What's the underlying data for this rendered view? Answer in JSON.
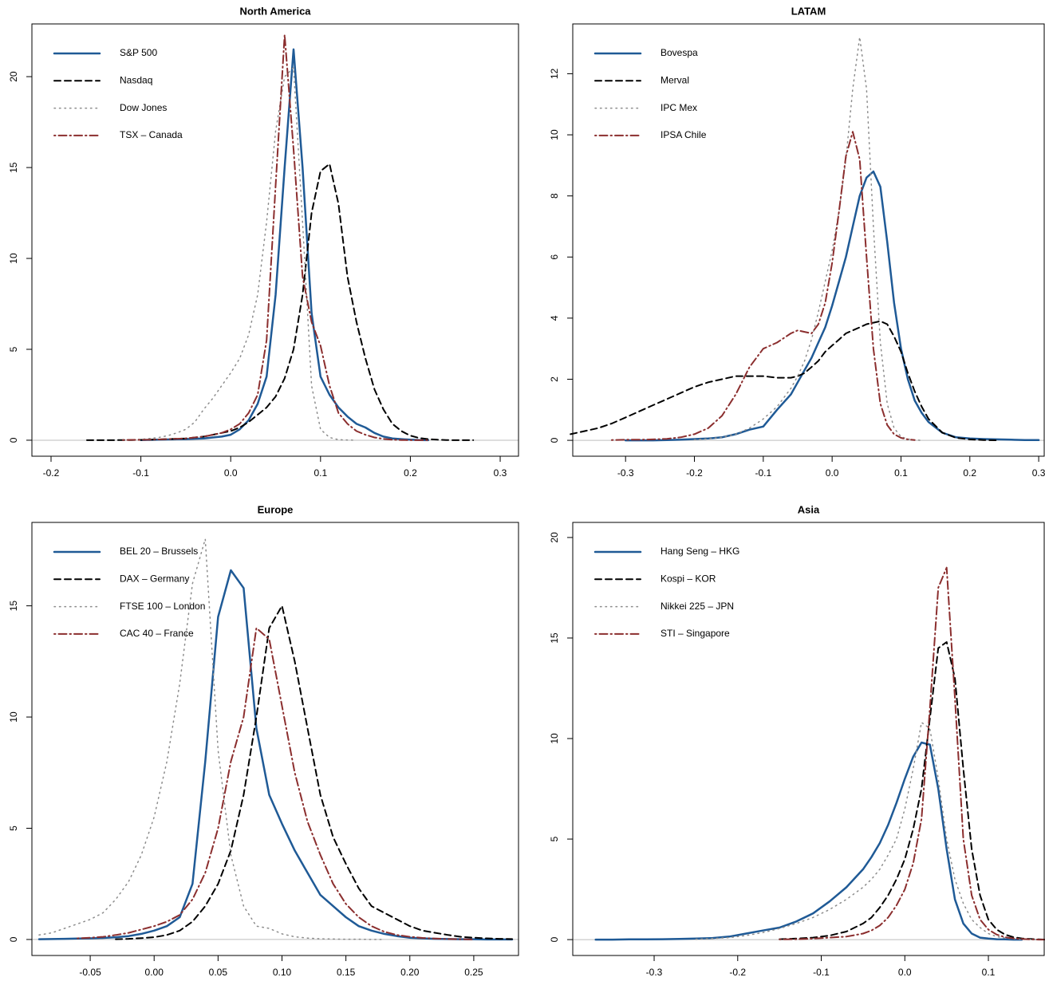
{
  "chart_data": [
    {
      "type": "line",
      "title": "North America",
      "legend": "top-left",
      "x": [
        -0.16,
        -0.15,
        -0.14,
        -0.13,
        -0.12,
        -0.11,
        -0.1,
        -0.09,
        -0.08,
        -0.07,
        -0.06,
        -0.05,
        -0.04,
        -0.03,
        -0.02,
        -0.01,
        0,
        0.01,
        0.02,
        0.03,
        0.04,
        0.05,
        0.06,
        0.07,
        0.08,
        0.09,
        0.1,
        0.11,
        0.12,
        0.13,
        0.14,
        0.15,
        0.16,
        0.17,
        0.18,
        0.19,
        0.2,
        0.21,
        0.22,
        0.23,
        0.24,
        0.25,
        0.26,
        0.27
      ],
      "series": [
        {
          "name": "S&P 500",
          "color": "#1f5a96",
          "dash": "solid",
          "values": [
            null,
            null,
            null,
            null,
            null,
            null,
            0.01,
            0.02,
            0.03,
            0.04,
            0.05,
            0.06,
            0.08,
            0.1,
            0.15,
            0.2,
            0.3,
            0.6,
            1.1,
            2,
            3.5,
            8,
            15,
            21.5,
            15,
            7,
            3.5,
            2.5,
            1.8,
            1.3,
            0.9,
            0.7,
            0.4,
            0.2,
            0.1,
            0.06,
            0.03,
            0.01,
            0,
            null,
            null,
            null,
            null,
            null
          ]
        },
        {
          "name": "Nasdaq",
          "color": "#000000",
          "dash": "dashed",
          "values": [
            0,
            0,
            0,
            0,
            0.01,
            0.01,
            0.02,
            0.03,
            0.04,
            0.06,
            0.08,
            0.1,
            0.15,
            0.2,
            0.3,
            0.4,
            0.5,
            0.7,
            1,
            1.4,
            1.8,
            2.4,
            3.4,
            5,
            8,
            12.5,
            14.8,
            15.2,
            13,
            9,
            6.5,
            4.5,
            2.8,
            1.7,
            0.9,
            0.5,
            0.25,
            0.12,
            0.06,
            0.03,
            0.01,
            0,
            0,
            0
          ]
        },
        {
          "name": "Dow Jones",
          "color": "#8c8c8c",
          "dash": "dotted",
          "values": [
            null,
            null,
            null,
            null,
            0.02,
            0.03,
            0.05,
            0.1,
            0.15,
            0.25,
            0.4,
            0.6,
            1,
            1.7,
            2.3,
            3,
            3.7,
            4.5,
            5.8,
            8,
            12,
            17,
            20,
            20.5,
            12,
            3,
            0.6,
            0.15,
            0.03,
            0.01,
            0,
            null,
            null,
            null,
            null,
            null,
            null,
            null,
            null,
            null,
            null,
            null,
            null,
            null
          ]
        },
        {
          "name": "TSX – Canada",
          "color": "#8b2e2e",
          "dash": "dotdash",
          "values": [
            null,
            null,
            null,
            null,
            0.01,
            0.02,
            0.02,
            0.03,
            0.04,
            0.06,
            0.08,
            0.1,
            0.15,
            0.2,
            0.3,
            0.4,
            0.6,
            0.9,
            1.5,
            2.5,
            5.5,
            14,
            22.3,
            16,
            9,
            6.5,
            5.2,
            3,
            1.5,
            0.9,
            0.5,
            0.3,
            0.15,
            0.07,
            0.03,
            0.01,
            0,
            0,
            0,
            null,
            null,
            null,
            null,
            null
          ]
        }
      ],
      "xlim": [
        -0.2213,
        0.3204
      ],
      "ylim": [
        -0.88,
        22.9
      ],
      "xticks": [
        -0.2,
        -0.1,
        {
          "value": 0,
          "label": "0.0"
        },
        0.1,
        0.2,
        0.3
      ],
      "yticks": [
        0,
        5,
        10,
        15,
        20
      ]
    },
    {
      "type": "line",
      "title": "LATAM",
      "legend": "top-left",
      "x": [
        -0.38,
        -0.36,
        -0.34,
        -0.32,
        -0.3,
        -0.28,
        -0.26,
        -0.24,
        -0.22,
        -0.2,
        -0.18,
        -0.16,
        -0.14,
        -0.12,
        -0.1,
        -0.08,
        -0.06,
        -0.05,
        -0.04,
        -0.03,
        -0.02,
        -0.01,
        0,
        0.01,
        0.02,
        0.03,
        0.04,
        0.05,
        0.06,
        0.07,
        0.08,
        0.09,
        0.1,
        0.11,
        0.12,
        0.13,
        0.14,
        0.16,
        0.18,
        0.2,
        0.22,
        0.24,
        0.26,
        0.28,
        0.3
      ],
      "series": [
        {
          "name": "Bovespa",
          "color": "#1f5a96",
          "dash": "solid",
          "values": [
            null,
            null,
            null,
            null,
            0,
            0,
            0,
            0.01,
            0.02,
            0.04,
            0.06,
            0.1,
            0.2,
            0.35,
            0.45,
            1,
            1.5,
            1.9,
            2.3,
            2.7,
            3.2,
            3.7,
            4.4,
            5.2,
            6,
            7,
            8,
            8.6,
            8.8,
            8.3,
            6.5,
            4.5,
            3,
            2,
            1.3,
            0.9,
            0.6,
            0.25,
            0.1,
            0.06,
            0.04,
            0.03,
            0.02,
            0.01,
            0.01
          ]
        },
        {
          "name": "Merval",
          "color": "#000000",
          "dash": "dashed",
          "values": [
            0.2,
            0.3,
            0.4,
            0.55,
            0.75,
            0.95,
            1.15,
            1.35,
            1.55,
            1.75,
            1.9,
            2,
            2.1,
            2.1,
            2.1,
            2.05,
            2.05,
            2.1,
            2.2,
            2.4,
            2.6,
            2.9,
            3.1,
            3.3,
            3.5,
            3.6,
            3.7,
            3.8,
            3.85,
            3.9,
            3.8,
            3.4,
            2.9,
            2.2,
            1.6,
            1.1,
            0.7,
            0.25,
            0.08,
            0.03,
            0.01,
            0,
            null,
            null,
            null
          ]
        },
        {
          "name": "IPC Mex",
          "color": "#8c8c8c",
          "dash": "dotted",
          "values": [
            null,
            null,
            null,
            null,
            null,
            null,
            null,
            null,
            null,
            0.02,
            0.05,
            0.1,
            0.2,
            0.4,
            0.7,
            1.1,
            1.7,
            2.1,
            2.6,
            3.3,
            4.2,
            5.2,
            6.2,
            7.5,
            9.2,
            11.5,
            13.2,
            11.5,
            7,
            3.2,
            1.2,
            0.4,
            0.12,
            0.04,
            0.01,
            0,
            null,
            null,
            null,
            null,
            null,
            null,
            null,
            null,
            null
          ]
        },
        {
          "name": "IPSA Chile",
          "color": "#8b2e2e",
          "dash": "dotdash",
          "values": [
            null,
            null,
            null,
            0.01,
            0.02,
            0.02,
            0.03,
            0.05,
            0.1,
            0.2,
            0.4,
            0.8,
            1.5,
            2.4,
            3,
            3.2,
            3.5,
            3.6,
            3.55,
            3.5,
            3.8,
            4.5,
            5.8,
            7.5,
            9.3,
            10.1,
            9.2,
            6,
            3,
            1.2,
            0.5,
            0.2,
            0.08,
            0.03,
            0.01,
            null,
            null,
            null,
            null,
            null,
            null,
            null,
            null,
            null,
            null
          ]
        }
      ],
      "xlim": [
        -0.3767,
        0.308
      ],
      "ylim": [
        -0.52,
        13.63
      ],
      "xticks": [
        -0.3,
        -0.2,
        -0.1,
        {
          "value": 0,
          "label": "0.0"
        },
        0.1,
        0.2,
        0.3
      ],
      "yticks": [
        0,
        2,
        4,
        6,
        8,
        10,
        12
      ]
    },
    {
      "type": "line",
      "title": "Europe",
      "legend": "top-left",
      "x": [
        -0.09,
        -0.08,
        -0.07,
        -0.06,
        -0.05,
        -0.04,
        -0.03,
        -0.02,
        -0.01,
        0,
        0.01,
        0.02,
        0.03,
        0.04,
        0.05,
        0.06,
        0.07,
        0.08,
        0.09,
        0.1,
        0.11,
        0.12,
        0.13,
        0.14,
        0.15,
        0.16,
        0.17,
        0.18,
        0.19,
        0.2,
        0.21,
        0.22,
        0.23,
        0.24,
        0.25,
        0.26,
        0.27,
        0.28
      ],
      "series": [
        {
          "name": "BEL 20 – Brussels",
          "color": "#1f5a96",
          "dash": "solid",
          "values": [
            0.01,
            0.02,
            0.03,
            0.04,
            0.05,
            0.07,
            0.1,
            0.15,
            0.25,
            0.4,
            0.6,
            1,
            2.5,
            8,
            14.5,
            16.6,
            15.8,
            9.5,
            6.5,
            5.2,
            4,
            3,
            2,
            1.5,
            1,
            0.6,
            0.4,
            0.25,
            0.15,
            0.08,
            0.05,
            0.03,
            0.02,
            0.01,
            0.01,
            0,
            0,
            0
          ]
        },
        {
          "name": "DAX – Germany",
          "color": "#000000",
          "dash": "dashed",
          "values": [
            null,
            null,
            null,
            null,
            null,
            null,
            0.01,
            0.03,
            0.06,
            0.1,
            0.2,
            0.4,
            0.8,
            1.5,
            2.5,
            4,
            6.5,
            10,
            14,
            15,
            12.5,
            9.5,
            6.5,
            4.6,
            3.4,
            2.3,
            1.5,
            1.2,
            0.9,
            0.6,
            0.4,
            0.3,
            0.2,
            0.12,
            0.08,
            0.05,
            0.03,
            0.02
          ]
        },
        {
          "name": "FTSE 100 – London",
          "color": "#8c8c8c",
          "dash": "dotted",
          "values": [
            0.2,
            0.3,
            0.5,
            0.7,
            0.9,
            1.2,
            1.8,
            2.6,
            3.8,
            5.5,
            8,
            11.5,
            16,
            18,
            8.5,
            3.8,
            1.5,
            0.6,
            0.5,
            0.25,
            0.12,
            0.06,
            0.03,
            0.02,
            0.01,
            0.01,
            0,
            0,
            null,
            null,
            null,
            null,
            null,
            null,
            null,
            null,
            null,
            null
          ]
        },
        {
          "name": "CAC 40 – France",
          "color": "#8b2e2e",
          "dash": "dotdash",
          "values": [
            null,
            null,
            null,
            0.05,
            0.08,
            0.12,
            0.2,
            0.3,
            0.45,
            0.6,
            0.8,
            1.1,
            1.8,
            3,
            5,
            8,
            10,
            14,
            13.5,
            10.5,
            7.5,
            5.3,
            3.8,
            2.5,
            1.6,
            1,
            0.6,
            0.35,
            0.2,
            0.12,
            0.07,
            0.04,
            0.02,
            0.01,
            0,
            null,
            null,
            null
          ]
        }
      ],
      "xlim": [
        -0.0956,
        0.285
      ],
      "ylim": [
        -0.72,
        18.75
      ],
      "xticks": [
        -0.05,
        {
          "value": 0,
          "label": "0.00"
        },
        0.05,
        {
          "value": 0.1,
          "label": "0.10"
        },
        0.15,
        {
          "value": 0.2,
          "label": "0.20"
        },
        0.25
      ],
      "yticks": [
        0,
        5,
        10,
        15
      ]
    },
    {
      "type": "line",
      "title": "Asia",
      "legend": "top-left",
      "x": [
        -0.37,
        -0.35,
        -0.33,
        -0.31,
        -0.29,
        -0.27,
        -0.25,
        -0.23,
        -0.21,
        -0.19,
        -0.17,
        -0.15,
        -0.13,
        -0.11,
        -0.09,
        -0.07,
        -0.05,
        -0.04,
        -0.03,
        -0.02,
        -0.01,
        0,
        0.01,
        0.02,
        0.03,
        0.04,
        0.05,
        0.06,
        0.07,
        0.08,
        0.09,
        0.1,
        0.11,
        0.12,
        0.13,
        0.14,
        0.15,
        0.16,
        0.17
      ],
      "series": [
        {
          "name": "Hang Seng – HKG",
          "color": "#1f5a96",
          "dash": "solid",
          "values": [
            0,
            0,
            0.01,
            0.01,
            0.02,
            0.03,
            0.05,
            0.08,
            0.15,
            0.3,
            0.45,
            0.6,
            0.9,
            1.3,
            1.9,
            2.6,
            3.5,
            4.1,
            4.8,
            5.7,
            6.8,
            8,
            9.1,
            9.8,
            9.7,
            7.5,
            4.5,
            2,
            0.8,
            0.3,
            0.1,
            0.05,
            0.02,
            0.01,
            0,
            0,
            null,
            null,
            null
          ]
        },
        {
          "name": "Kospi – KOR",
          "color": "#000000",
          "dash": "dashed",
          "values": [
            null,
            null,
            null,
            null,
            null,
            null,
            null,
            null,
            null,
            null,
            null,
            0.02,
            0.05,
            0.1,
            0.2,
            0.4,
            0.8,
            1.1,
            1.6,
            2.2,
            3,
            4,
            5.5,
            7.5,
            11,
            14.5,
            14.8,
            13,
            8.5,
            4.5,
            2.2,
            1,
            0.5,
            0.25,
            0.12,
            0.06,
            0.03,
            0.01,
            0
          ]
        },
        {
          "name": "Nikkei 225 – JPN",
          "color": "#8c8c8c",
          "dash": "dotted",
          "values": [
            null,
            null,
            null,
            null,
            null,
            null,
            0.02,
            0.05,
            0.1,
            0.2,
            0.35,
            0.55,
            0.8,
            1.1,
            1.5,
            2,
            2.6,
            3,
            3.5,
            4.2,
            5,
            6.5,
            8.5,
            10.8,
            10.5,
            8,
            5,
            3,
            1.8,
            1,
            0.6,
            0.3,
            0.15,
            0.08,
            0.04,
            0.02,
            0.01,
            0,
            0
          ]
        },
        {
          "name": "STI – Singapore",
          "color": "#8b2e2e",
          "dash": "dotdash",
          "values": [
            null,
            null,
            null,
            null,
            null,
            null,
            null,
            null,
            null,
            null,
            null,
            0.01,
            0.02,
            0.05,
            0.1,
            0.15,
            0.3,
            0.45,
            0.7,
            1.1,
            1.7,
            2.5,
            3.8,
            6,
            11.5,
            17.5,
            18.5,
            12,
            5,
            2.2,
            1,
            0.5,
            0.25,
            0.12,
            0.06,
            0.03,
            0.01,
            0,
            0
          ]
        }
      ],
      "xlim": [
        -0.3974,
        0.1668
      ],
      "ylim": [
        -0.79,
        20.75
      ],
      "xticks": [
        -0.3,
        -0.2,
        -0.1,
        {
          "value": 0,
          "label": "0.0"
        },
        0.1
      ],
      "yticks": [
        0,
        5,
        10,
        15,
        20
      ]
    }
  ]
}
